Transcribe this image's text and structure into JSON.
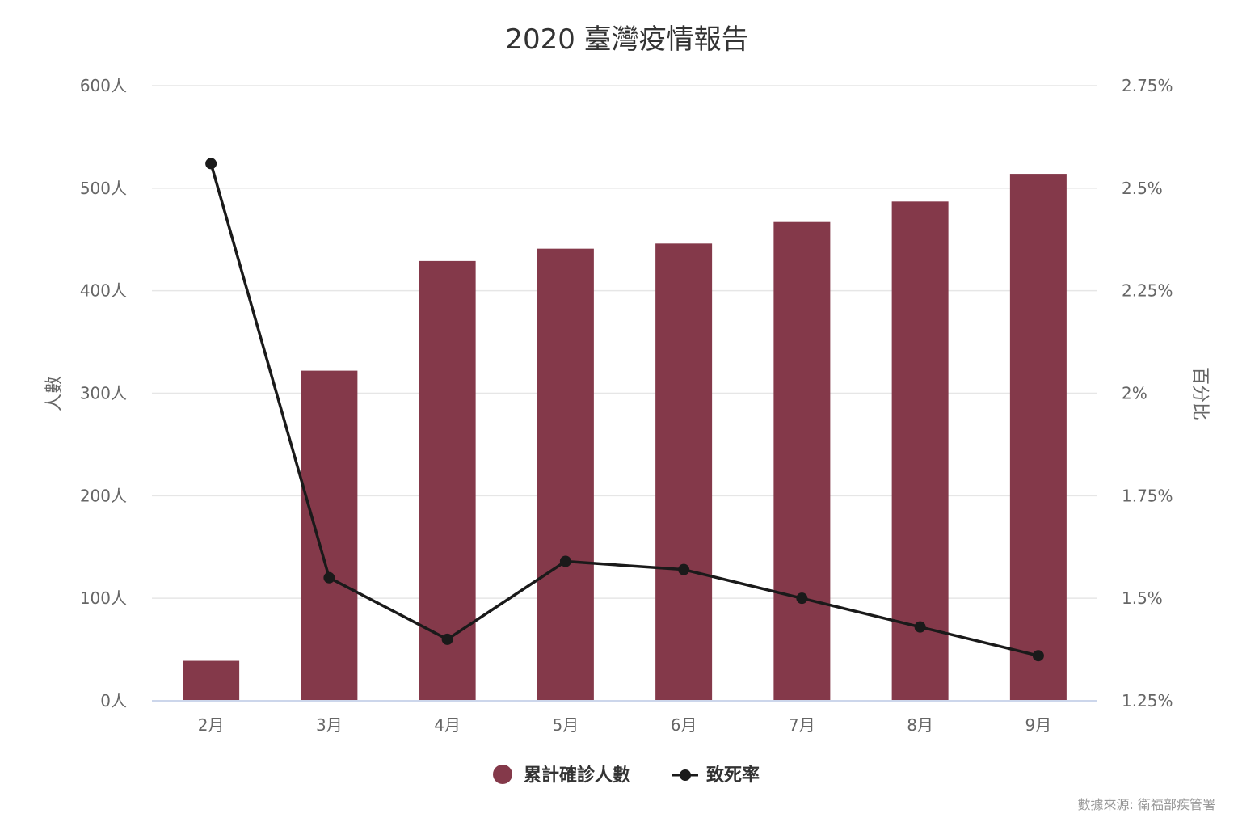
{
  "chart_data": {
    "type": "bar",
    "title": "2020 臺灣疫情報告",
    "categories": [
      "2月",
      "3月",
      "4月",
      "5月",
      "6月",
      "7月",
      "8月",
      "9月"
    ],
    "series": [
      {
        "name": "累計確診人數",
        "type": "bar",
        "axis": "left",
        "color": "#84394a",
        "values": [
          39,
          322,
          429,
          441,
          446,
          467,
          487,
          514
        ]
      },
      {
        "name": "致死率",
        "type": "line",
        "axis": "right",
        "color": "#1a1a1a",
        "values": [
          2.56,
          1.55,
          1.4,
          1.59,
          1.57,
          1.5,
          1.43,
          1.36
        ]
      }
    ],
    "y_left": {
      "label": "人數",
      "range": [
        0,
        600
      ],
      "ticks": [
        {
          "value": 0,
          "label": "0人"
        },
        {
          "value": 100,
          "label": "100人"
        },
        {
          "value": 200,
          "label": "200人"
        },
        {
          "value": 300,
          "label": "300人"
        },
        {
          "value": 400,
          "label": "400人"
        },
        {
          "value": 500,
          "label": "500人"
        },
        {
          "value": 600,
          "label": "600人"
        }
      ]
    },
    "y_right": {
      "label": "百分比",
      "range": [
        1.25,
        2.75
      ],
      "ticks": [
        {
          "value": 1.25,
          "label": "1.25%"
        },
        {
          "value": 1.5,
          "label": "1.5%"
        },
        {
          "value": 1.75,
          "label": "1.75%"
        },
        {
          "value": 2,
          "label": "2%"
        },
        {
          "value": 2.25,
          "label": "2.25%"
        },
        {
          "value": 2.5,
          "label": "2.5%"
        },
        {
          "value": 2.75,
          "label": "2.75%"
        }
      ]
    },
    "grid": true,
    "legend_position": "bottom-center",
    "credit": "數據來源: 衛福部疾管署"
  }
}
